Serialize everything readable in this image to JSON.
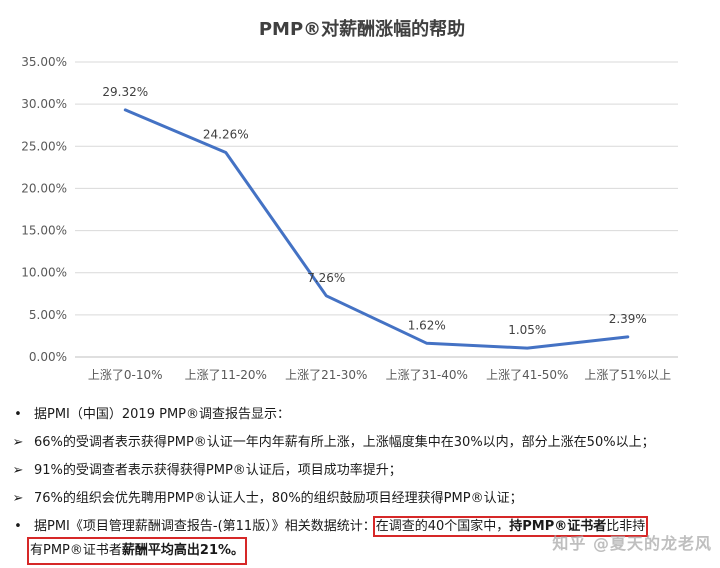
{
  "chart_data": {
    "type": "line",
    "title": "PMP®对薪酬涨幅的帮助",
    "categories": [
      "上涨了0-10%",
      "上涨了11-20%",
      "上涨了21-30%",
      "上涨了31-40%",
      "上涨了41-50%",
      "上涨了51%以上"
    ],
    "values": [
      29.32,
      24.26,
      7.26,
      1.62,
      1.05,
      2.39
    ],
    "data_labels": [
      "29.32%",
      "24.26%",
      "7.26%",
      "1.62%",
      "1.05%",
      "2.39%"
    ],
    "ylim": [
      0,
      35
    ],
    "yticks": [
      "0.00%",
      "5.00%",
      "10.00%",
      "15.00%",
      "20.00%",
      "25.00%",
      "30.00%",
      "35.00%"
    ],
    "xlabel": "",
    "ylabel": "",
    "grid": true,
    "line_color": "#4472c4"
  },
  "notes": [
    {
      "mark": "•",
      "text": "据PMI（中国）2019 PMP®调查报告显示："
    },
    {
      "mark": "➢",
      "text": "66%的受调者表示获得PMP®认证一年内年薪有所上涨，上涨幅度集中在30%以内，部分上涨在50%以上；"
    },
    {
      "mark": "➢",
      "text": "91%的受调查者表示获得获得PMP®认证后，项目成功率提升；"
    },
    {
      "mark": "➢",
      "text": "76%的组织会优先聘用PMP®认证人士，80%的组织鼓励项目经理获得PMP®认证；"
    }
  ],
  "last_note": {
    "mark": "•",
    "prefix": "据PMI《项目管理薪酬调查报告-(第11版）》相关数据统计：",
    "boxed_part1": "在调查的40个国家中，",
    "boxed_bold1": "持PMP®证书者",
    "boxed_part2": "比非持",
    "line2_part": "有PMP®证书者",
    "line2_bold": "薪酬平均高出21%。"
  },
  "watermark": "知乎 @夏天的龙老风"
}
